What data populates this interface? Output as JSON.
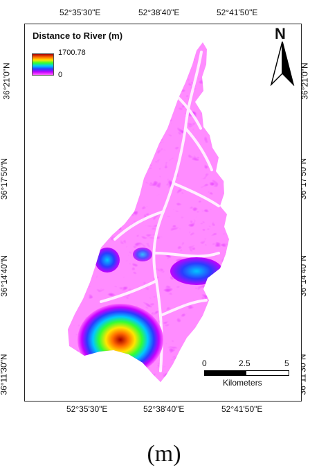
{
  "coords": {
    "lon_labels": [
      "52°35'30\"E",
      "52°38'40\"E",
      "52°41'50\"E"
    ],
    "lat_labels": [
      "36°21'0\"N",
      "36°17'50\"N",
      "36°14'40\"N",
      "36°11'30\"N"
    ]
  },
  "legend": {
    "title": "Distance to River (m)",
    "max": "1700.78",
    "min": "0",
    "colors": [
      "#a30000",
      "#ff6a00",
      "#ffe600",
      "#33ff33",
      "#00c8ff",
      "#2a3cff",
      "#c400ff",
      "#ff66ff",
      "#ffffff"
    ]
  },
  "north_arrow": {
    "label": "N"
  },
  "scale_bar": {
    "ticks": [
      "0",
      "2.5",
      "5"
    ],
    "unit": "Kilometers"
  },
  "panel_label": "(m)"
}
